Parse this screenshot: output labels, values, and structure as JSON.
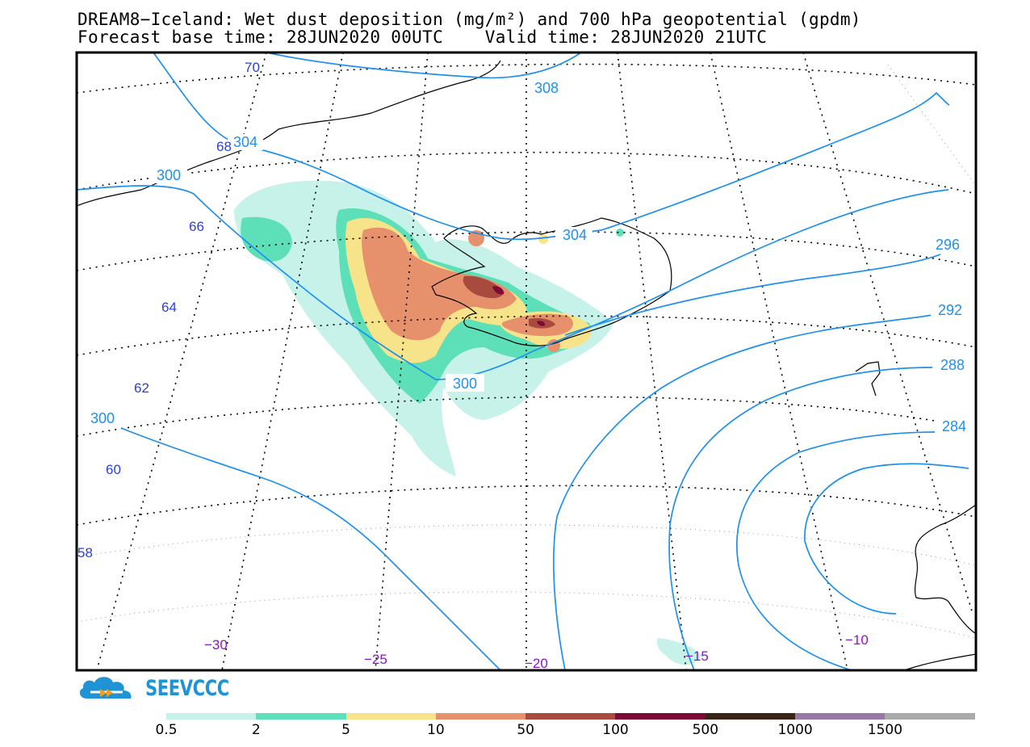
{
  "header": {
    "title_line1": "DREAM8−Iceland: Wet dust deposition (mg/m²) and 700 hPa geopotential (gpdm)",
    "title_line2": "Forecast base time: 28JUN2020 00UTC    Valid time: 28JUN2020 21UTC"
  },
  "map": {
    "contour_labels": [
      "308",
      "304",
      "304",
      "300",
      "300",
      "300",
      "296",
      "292",
      "288",
      "284"
    ],
    "latitude_labels": [
      "70",
      "68",
      "66",
      "64",
      "62",
      "60",
      "58"
    ],
    "longitude_labels": [
      "−30",
      "−25",
      "−20",
      "−15",
      "−10"
    ],
    "colors": {
      "contour": "#1e90ee",
      "latitude_label": "#2a3fe0",
      "longitude_label": "#8a16c8",
      "coastline": "#000000",
      "graticule": "#000000"
    }
  },
  "logo": {
    "text": "SEEVCCC",
    "icon": "cloud-logo-icon"
  },
  "legend": {
    "labels": [
      "0.5",
      "2",
      "5",
      "10",
      "50",
      "100",
      "500",
      "1000",
      "1500"
    ],
    "colors": [
      "#c6f2ea",
      "#5ddfb8",
      "#f7e48a",
      "#e6906c",
      "#a84a3e",
      "#7d0a34",
      "#3a2418",
      "#9a78a6",
      "#aaaaaa"
    ]
  }
}
